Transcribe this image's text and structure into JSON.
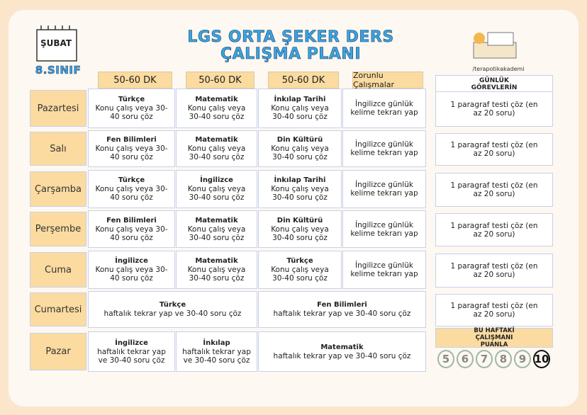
{
  "header": {
    "month": "ŞUBAT",
    "grade": "8.SINIF",
    "title_lines": [
      "LGS ORTA ŞEKER DERS",
      "ÇALIŞMA PLANI"
    ],
    "brand": "/terapotikakademi"
  },
  "table": {
    "columns": [
      "50-60 DK",
      "50-60 DK",
      "50-60 DK",
      "Zorunlu Çalışmalar"
    ],
    "rows": [
      {
        "day": "Pazartesi",
        "cells": [
          {
            "subject": "Türkçe",
            "text": "Konu çalış veya 30-40 soru çöz"
          },
          {
            "subject": "Matematik",
            "text": "Konu çalış veya 30-40 soru çöz"
          },
          {
            "subject": "İnkılap Tarihi",
            "text": "Konu çalış veya 30-40 soru çöz"
          },
          {
            "text": "İngilizce günlük kelime tekrarı yap"
          }
        ]
      },
      {
        "day": "Salı",
        "cells": [
          {
            "subject": "Fen Bilimleri",
            "text": "Konu çalış veya 30-40 soru çöz"
          },
          {
            "subject": "Matematik",
            "text": "Konu çalış veya 30-40 soru çöz"
          },
          {
            "subject": "Din Kültürü",
            "text": "Konu çalış veya 30-40 soru çöz"
          },
          {
            "text": "İngilizce günlük kelime tekrarı yap"
          }
        ]
      },
      {
        "day": "Çarşamba",
        "cells": [
          {
            "subject": "Türkçe",
            "text": "Konu çalış veya 30-40 soru çöz"
          },
          {
            "subject": "İngilizce",
            "text": "Konu çalış veya 30-40 soru çöz"
          },
          {
            "subject": "İnkılap Tarihi",
            "text": "Konu çalış veya 30-40 soru çöz"
          },
          {
            "text": "İngilizce günlük kelime tekrarı yap"
          }
        ]
      },
      {
        "day": "Perşembe",
        "cells": [
          {
            "subject": "Fen Bilimleri",
            "text": "Konu çalış veya 30-40 soru çöz"
          },
          {
            "subject": "Matematik",
            "text": "Konu çalış veya 30-40 soru çöz"
          },
          {
            "subject": "Din Kültürü",
            "text": "Konu çalış veya 30-40 soru çöz"
          },
          {
            "text": "İngilizce günlük kelime tekrarı yap"
          }
        ]
      },
      {
        "day": "Cuma",
        "cells": [
          {
            "subject": "İngilizce",
            "text": "Konu çalış veya 30-40 soru çöz"
          },
          {
            "subject": "Matematik",
            "text": "Konu çalış veya 30-40 soru çöz"
          },
          {
            "subject": "Türkçe",
            "text": "Konu çalış veya 30-40 soru çöz"
          },
          {
            "text": "İngilizce günlük kelime tekrarı yap"
          }
        ]
      },
      {
        "day": "Cumartesi",
        "cells": [
          {
            "subject": "Türkçe",
            "text": "haftalık tekrar yap ve 30-40 soru çöz"
          },
          {
            "subject": "Fen Bilimleri",
            "text": "haftalık tekrar yap ve 30-40 soru çöz"
          }
        ]
      },
      {
        "day": "Pazar",
        "cells": [
          {
            "subject": "İngilizce",
            "text": "haftalık tekrar yap ve 30-40 soru çöz"
          },
          {
            "subject": "İnkılap",
            "text": "haftalık tekrar yap ve 30-40 soru çöz"
          },
          {
            "subject": "Matematik",
            "text": "haftalık tekrar yap ve 30-40 soru çöz"
          }
        ]
      }
    ]
  },
  "side": {
    "title": "GÜNLÜK GÖREVLERİN",
    "tasks": [
      "1 paragraf testi çöz (en az 20 soru)",
      "1 paragraf testi çöz (en az 20 soru)",
      "1 paragraf testi çöz (en az 20 soru)",
      "1 paragraf testi çöz (en az 20 soru)",
      "1 paragraf testi çöz (en az 20 soru)",
      "1 paragraf testi çöz (en az 20 soru)"
    ],
    "rating_title": "BU HAFTAKİ ÇALIŞMANI PUANLA",
    "scores": [
      5,
      6,
      7,
      8,
      9,
      10
    ]
  }
}
